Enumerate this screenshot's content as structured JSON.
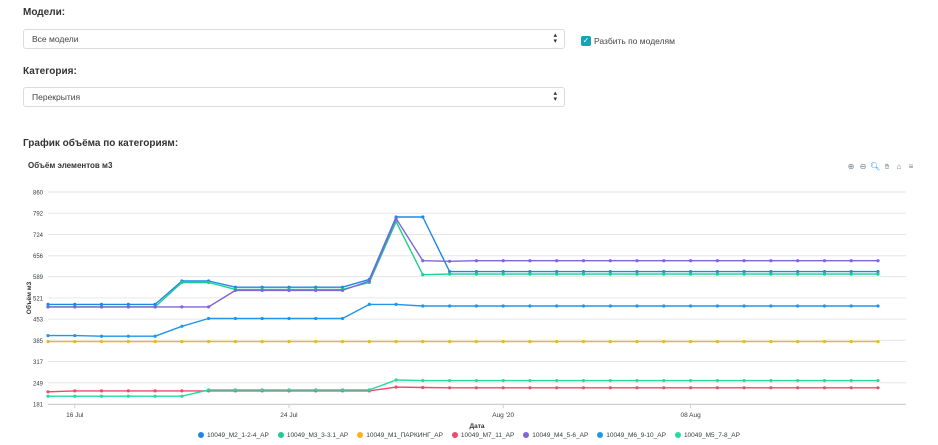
{
  "filters": {
    "models_label": "Модели:",
    "models_value": "Все модели",
    "split_label": "Разбить по моделям",
    "split_checked": true,
    "category_label": "Категория:",
    "category_value": "Перекрытия",
    "chart_section_label": "График объёма по категориям:"
  },
  "toolbar_icons": [
    "zoom-in-icon",
    "zoom-out-icon",
    "zoom-search-icon",
    "pan-hand-icon",
    "home-icon",
    "menu-icon"
  ],
  "chart_data": {
    "type": "line",
    "title": "Объём элементов м3",
    "xlabel": "Дата",
    "ylabel": "Объём м3",
    "ylim": [
      181,
      860
    ],
    "yticks": [
      181,
      249,
      317,
      385,
      453,
      521,
      589,
      656,
      724,
      792,
      860
    ],
    "x_tick_labels": [
      {
        "date": "2020-07-16",
        "label": "16 Jul"
      },
      {
        "date": "2020-07-24",
        "label": "24 Jul"
      },
      {
        "date": "2020-08-01",
        "label": "Aug '20"
      },
      {
        "date": "2020-08-08",
        "label": "08 Aug"
      }
    ],
    "x": [
      "2020-07-15",
      "2020-07-16",
      "2020-07-17",
      "2020-07-18",
      "2020-07-19",
      "2020-07-20",
      "2020-07-21",
      "2020-07-22",
      "2020-07-23",
      "2020-07-24",
      "2020-07-25",
      "2020-07-26",
      "2020-07-27",
      "2020-07-28",
      "2020-07-29",
      "2020-07-30",
      "2020-07-31",
      "2020-08-01",
      "2020-08-02",
      "2020-08-03",
      "2020-08-04",
      "2020-08-05",
      "2020-08-06",
      "2020-08-07",
      "2020-08-08",
      "2020-08-09",
      "2020-08-10",
      "2020-08-11",
      "2020-08-12",
      "2020-08-13",
      "2020-08-14",
      "2020-08-15"
    ],
    "grid": true,
    "legend_position": "bottom",
    "series": [
      {
        "name": "10049_M2_1-2-4_AP",
        "color": "#1e88e5",
        "values": [
          500,
          500,
          500,
          500,
          500,
          575,
          575,
          555,
          555,
          555,
          555,
          555,
          580,
          780,
          780,
          605,
          605,
          605,
          605,
          605,
          605,
          605,
          605,
          605,
          605,
          605,
          605,
          605,
          605,
          605,
          605,
          605
        ]
      },
      {
        "name": "10049_M3_3-3.1_AP",
        "color": "#1fce8e",
        "values": [
          492,
          492,
          492,
          492,
          492,
          570,
          570,
          548,
          548,
          548,
          548,
          548,
          570,
          765,
          595,
          597,
          597,
          597,
          597,
          597,
          597,
          597,
          597,
          597,
          597,
          597,
          597,
          597,
          597,
          597,
          597,
          597
        ]
      },
      {
        "name": "10049_M1_ПАРКИНГ_AP",
        "color": "#f9b21a",
        "values": [
          381,
          381,
          381,
          381,
          381,
          381,
          381,
          381,
          381,
          381,
          381,
          381,
          381,
          381,
          381,
          381,
          381,
          381,
          381,
          381,
          381,
          381,
          381,
          381,
          381,
          381,
          381,
          381,
          381,
          381,
          381,
          381
        ]
      },
      {
        "name": "10049_M7_11_AP",
        "color": "#ee4a6a",
        "values": [
          220,
          223,
          223,
          223,
          223,
          223,
          223,
          223,
          223,
          223,
          223,
          223,
          223,
          235,
          234,
          233,
          233,
          233,
          233,
          233,
          233,
          233,
          233,
          233,
          233,
          233,
          233,
          233,
          233,
          233,
          233,
          233
        ]
      },
      {
        "name": "10049_M4_5-6_AP",
        "color": "#8065d6",
        "values": [
          492,
          492,
          492,
          492,
          492,
          492,
          492,
          545,
          545,
          545,
          545,
          545,
          575,
          775,
          640,
          638,
          640,
          640,
          640,
          640,
          640,
          640,
          640,
          640,
          640,
          640,
          640,
          640,
          640,
          640,
          640,
          640
        ]
      },
      {
        "name": "10049_M6_9-10_AP",
        "color": "#2196e8",
        "values": [
          400,
          400,
          398,
          398,
          398,
          430,
          455,
          455,
          455,
          455,
          455,
          455,
          500,
          500,
          495,
          495,
          495,
          495,
          495,
          495,
          495,
          495,
          495,
          495,
          495,
          495,
          495,
          495,
          495,
          495,
          495,
          495
        ]
      },
      {
        "name": "10049_M5_7-8_AP",
        "color": "#26d9a0",
        "values": [
          206,
          206,
          206,
          206,
          206,
          206,
          226,
          226,
          226,
          226,
          226,
          226,
          226,
          258,
          256,
          256,
          256,
          256,
          256,
          256,
          256,
          256,
          256,
          256,
          256,
          256,
          256,
          256,
          256,
          256,
          256,
          256
        ]
      }
    ]
  }
}
